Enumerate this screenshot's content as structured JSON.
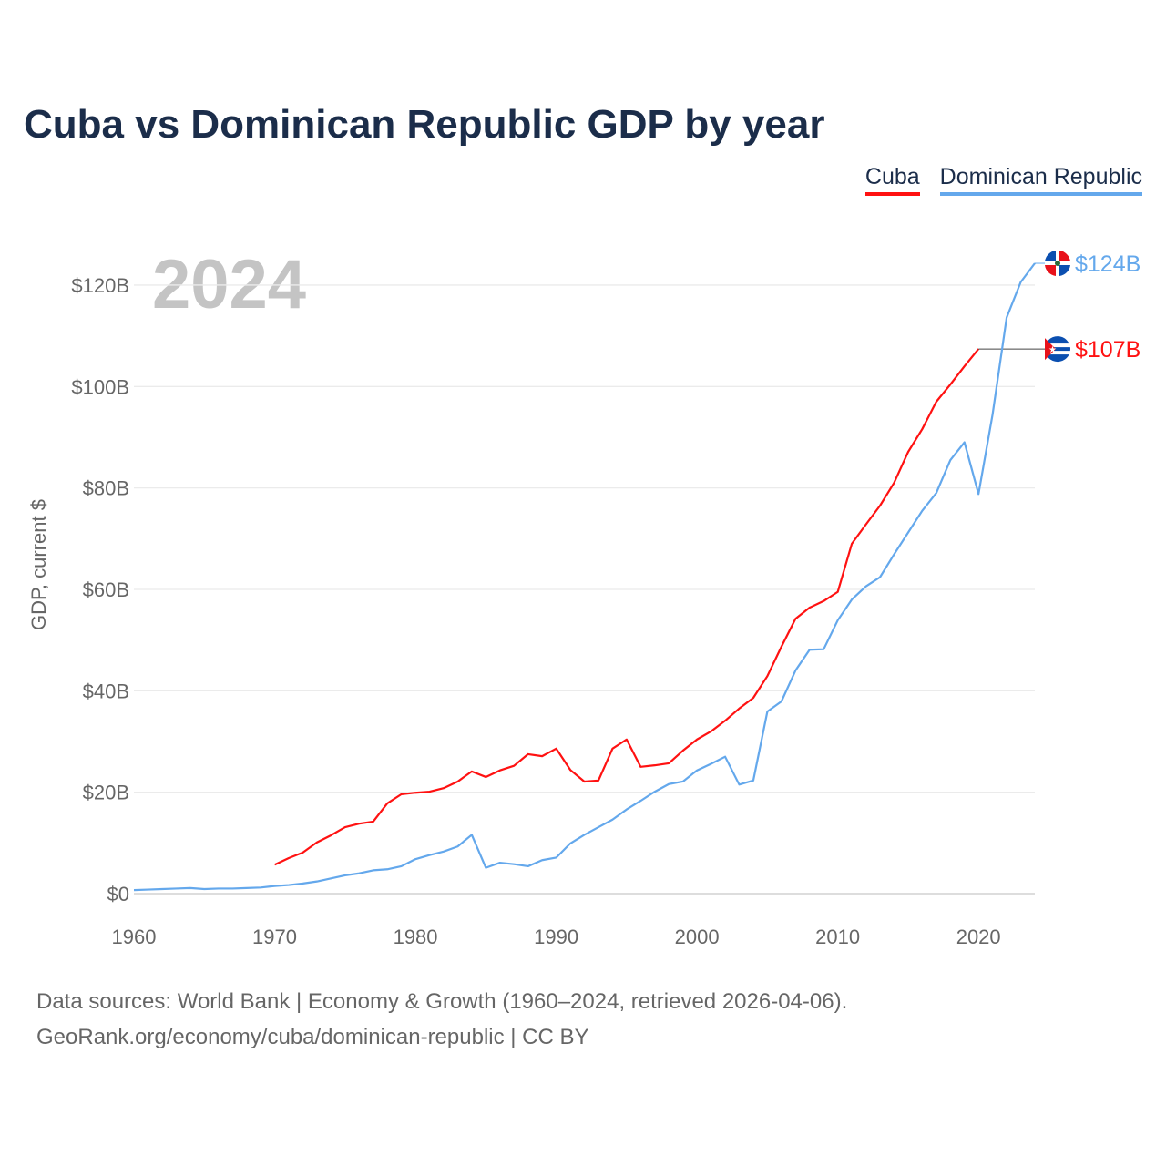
{
  "title": "Cuba vs Dominican Republic GDP by year",
  "legend": [
    {
      "label": "Cuba",
      "color": "#ff1111"
    },
    {
      "label": "Dominican Republic",
      "color": "#64a8ec"
    }
  ],
  "footer": {
    "line1": "Data sources: World Bank | Economy & Growth (1960–2024, retrieved 2026-04-06).",
    "line2": "GeoRank.org/economy/cuba/dominican-republic | CC BY"
  },
  "chart_data": {
    "type": "line",
    "title": "Cuba vs Dominican Republic GDP by year",
    "ylabel": "GDP, current $",
    "xlabel": "",
    "year_label": "2024",
    "xlim": [
      1960,
      2024
    ],
    "ylim": [
      0,
      130
    ],
    "x_ticks": [
      1960,
      1970,
      1980,
      1990,
      2000,
      2010,
      2020
    ],
    "x_tick_labels": [
      "1960",
      "1970",
      "1980",
      "1990",
      "2000",
      "2010",
      "2020"
    ],
    "y_ticks": [
      0,
      20,
      40,
      60,
      80,
      100,
      120
    ],
    "y_tick_labels": [
      "$0",
      "$20B",
      "$40B",
      "$60B",
      "$80B",
      "$100B",
      "$120B"
    ],
    "grid": true,
    "legend_position": "top-right",
    "series": [
      {
        "name": "Cuba",
        "color": "#ff1111",
        "start_year": 1970,
        "end_label": "$107B",
        "flag": "cuba-flag",
        "values": [
          5.7,
          7.0,
          8.1,
          10.1,
          11.5,
          13.1,
          13.8,
          14.2,
          17.8,
          19.6,
          19.9,
          20.1,
          20.8,
          22.1,
          24.1,
          23.0,
          24.3,
          25.2,
          27.5,
          27.1,
          28.6,
          24.4,
          22.1,
          22.3,
          28.6,
          30.4,
          25.0,
          25.3,
          25.7,
          28.2,
          30.4,
          32.0,
          34.1,
          36.5,
          38.6,
          42.9,
          48.7,
          54.2,
          56.4,
          57.7,
          59.5,
          69.0,
          72.8,
          76.5,
          81.0,
          87.1,
          91.6,
          97.0,
          100.4,
          104.0,
          107.4
        ]
      },
      {
        "name": "Dominican Republic",
        "color": "#64a8ec",
        "start_year": 1960,
        "end_label": "$124B",
        "flag": "dominican-republic-flag",
        "values": [
          0.7,
          0.8,
          0.9,
          1.0,
          1.1,
          0.9,
          1.0,
          1.0,
          1.1,
          1.2,
          1.5,
          1.7,
          2.0,
          2.4,
          3.0,
          3.6,
          4.0,
          4.6,
          4.8,
          5.4,
          6.8,
          7.6,
          8.3,
          9.3,
          11.6,
          5.1,
          6.1,
          5.8,
          5.4,
          6.6,
          7.1,
          9.9,
          11.6,
          13.1,
          14.6,
          16.6,
          18.3,
          20.1,
          21.6,
          22.1,
          24.3,
          25.6,
          27.0,
          21.5,
          22.3,
          35.9,
          37.9,
          44.0,
          48.1,
          48.2,
          53.9,
          58.0,
          60.6,
          62.4,
          66.9,
          71.2,
          75.5,
          79.0,
          85.5,
          89.0,
          78.8,
          94.5,
          113.6,
          120.6,
          124.3
        ]
      }
    ]
  }
}
